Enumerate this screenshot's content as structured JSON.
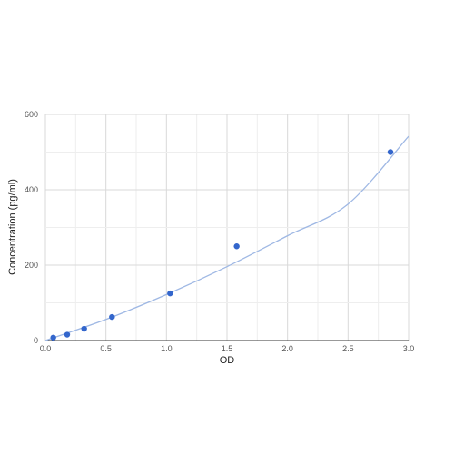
{
  "chart_data": {
    "type": "scatter",
    "title": "",
    "xlabel": "OD",
    "ylabel": "Concentration (pg/ml)",
    "xlim": [
      0,
      3.0
    ],
    "ylim": [
      0,
      600
    ],
    "x_ticks": [
      "0.0",
      "0.5",
      "1.0",
      "1.5",
      "2.0",
      "2.5",
      "3.0"
    ],
    "y_ticks": [
      "0",
      "200",
      "400",
      "600"
    ],
    "grid": true,
    "legend": "none",
    "series": [
      {
        "points": [
          {
            "x": 0.065,
            "y": 7.8
          },
          {
            "x": 0.18,
            "y": 15.6
          },
          {
            "x": 0.32,
            "y": 31.2
          },
          {
            "x": 0.55,
            "y": 62.5
          },
          {
            "x": 1.03,
            "y": 125
          },
          {
            "x": 1.58,
            "y": 250
          },
          {
            "x": 2.85,
            "y": 500
          }
        ],
        "color": "#3366cc"
      }
    ],
    "fit_curve": {
      "points": [
        {
          "x": 0.0,
          "y": 0
        },
        {
          "x": 0.5,
          "y": 56
        },
        {
          "x": 1.0,
          "y": 122
        },
        {
          "x": 1.5,
          "y": 196
        },
        {
          "x": 2.0,
          "y": 278
        },
        {
          "x": 2.5,
          "y": 362
        },
        {
          "x": 3.0,
          "y": 542
        }
      ],
      "color": "#9fb8e4"
    }
  }
}
